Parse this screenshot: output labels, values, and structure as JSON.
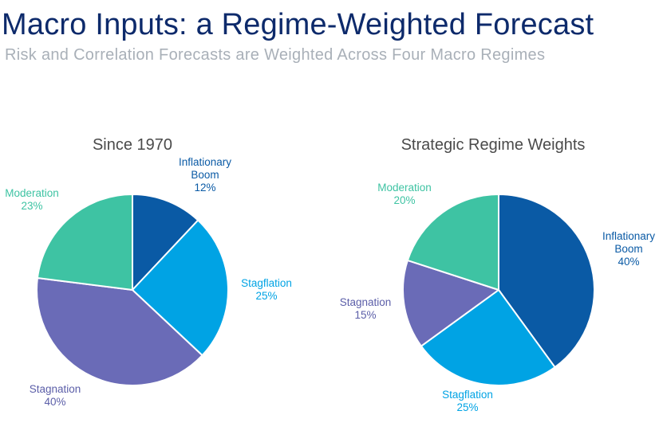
{
  "header": {
    "title": "Macro Inputs: a Regime-Weighted Forecast",
    "subtitle": "Risk and Correlation Forecasts are Weighted Across Four Macro Regimes"
  },
  "chart_data": [
    {
      "type": "pie",
      "title": "Since 1970",
      "slices": [
        {
          "name": "Inflationary Boom",
          "label_lines": [
            "Inflationary",
            "Boom"
          ],
          "value": 12,
          "value_label": "12%",
          "color": "#0a5aa5",
          "label_color": "#0a5aa5"
        },
        {
          "name": "Stagflation",
          "label_lines": [
            "Stagflation"
          ],
          "value": 25,
          "value_label": "25%",
          "color": "#00a3e4",
          "label_color": "#00a3e4"
        },
        {
          "name": "Stagnation",
          "label_lines": [
            "Stagnation"
          ],
          "value": 40,
          "value_label": "40%",
          "color": "#6a6bb7",
          "label_color": "#5b5ea8"
        },
        {
          "name": "Moderation",
          "label_lines": [
            "Moderation"
          ],
          "value": 23,
          "value_label": "23%",
          "color": "#3ec3a3",
          "label_color": "#3ec3a3"
        }
      ]
    },
    {
      "type": "pie",
      "title": "Strategic Regime Weights",
      "slices": [
        {
          "name": "Inflationary Boom",
          "label_lines": [
            "Inflationary",
            "Boom"
          ],
          "value": 40,
          "value_label": "40%",
          "color": "#0a5aa5",
          "label_color": "#0a5aa5"
        },
        {
          "name": "Stagflation",
          "label_lines": [
            "Stagflation"
          ],
          "value": 25,
          "value_label": "25%",
          "color": "#00a3e4",
          "label_color": "#00a3e4"
        },
        {
          "name": "Stagnation",
          "label_lines": [
            "Stagnation"
          ],
          "value": 15,
          "value_label": "15%",
          "color": "#6a6bb7",
          "label_color": "#5b5ea8"
        },
        {
          "name": "Moderation",
          "label_lines": [
            "Moderation"
          ],
          "value": 20,
          "value_label": "20%",
          "color": "#3ec3a3",
          "label_color": "#3ec3a3"
        }
      ]
    }
  ]
}
